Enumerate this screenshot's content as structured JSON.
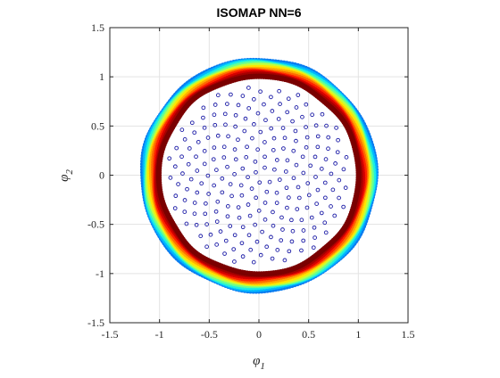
{
  "chart_data": {
    "type": "scatter",
    "title": "ISOMAP NN=6",
    "xlabel": {
      "base": "φ",
      "sub": "1"
    },
    "ylabel": {
      "base": "φ",
      "sub": "2"
    },
    "xlim": [
      -1.5,
      1.5
    ],
    "ylim": [
      -1.5,
      1.5
    ],
    "xticks": [
      -1.5,
      -1,
      -0.5,
      0,
      0.5,
      1,
      1.5
    ],
    "yticks": [
      -1.5,
      -1,
      -0.5,
      0,
      0.5,
      1,
      1.5
    ],
    "xtick_labels": [
      "-1.5",
      "-1",
      "-0.5",
      "0",
      "0.5",
      "1",
      "1.5"
    ],
    "ytick_labels": [
      "-1.5",
      "-1",
      "-0.5",
      "0",
      "0.5",
      "1",
      "1.5"
    ],
    "grid": true,
    "series": [
      {
        "kind": "interior-points",
        "marker": "open-circle",
        "color": "#1a1aa6",
        "layout": "sunflower",
        "count": 230,
        "radius": 0.92
      },
      {
        "kind": "boundary-ring",
        "marker": "filled-circle",
        "colormap": "jet",
        "bands": [
          {
            "radius": 1.005,
            "color": "#7a0000"
          },
          {
            "radius": 1.02,
            "color": "#a50000"
          },
          {
            "radius": 1.035,
            "color": "#d40000"
          },
          {
            "radius": 1.05,
            "color": "#ff2200"
          },
          {
            "radius": 1.065,
            "color": "#ff6a00"
          },
          {
            "radius": 1.08,
            "color": "#ffae00"
          },
          {
            "radius": 1.095,
            "color": "#ffe600"
          },
          {
            "radius": 1.11,
            "color": "#c2ff3d"
          },
          {
            "radius": 1.125,
            "color": "#6aff8f"
          },
          {
            "radius": 1.14,
            "color": "#1ef0e0"
          },
          {
            "radius": 1.155,
            "color": "#00b6ff"
          },
          {
            "radius": 1.17,
            "color": "#0a7cf0"
          }
        ]
      }
    ]
  }
}
